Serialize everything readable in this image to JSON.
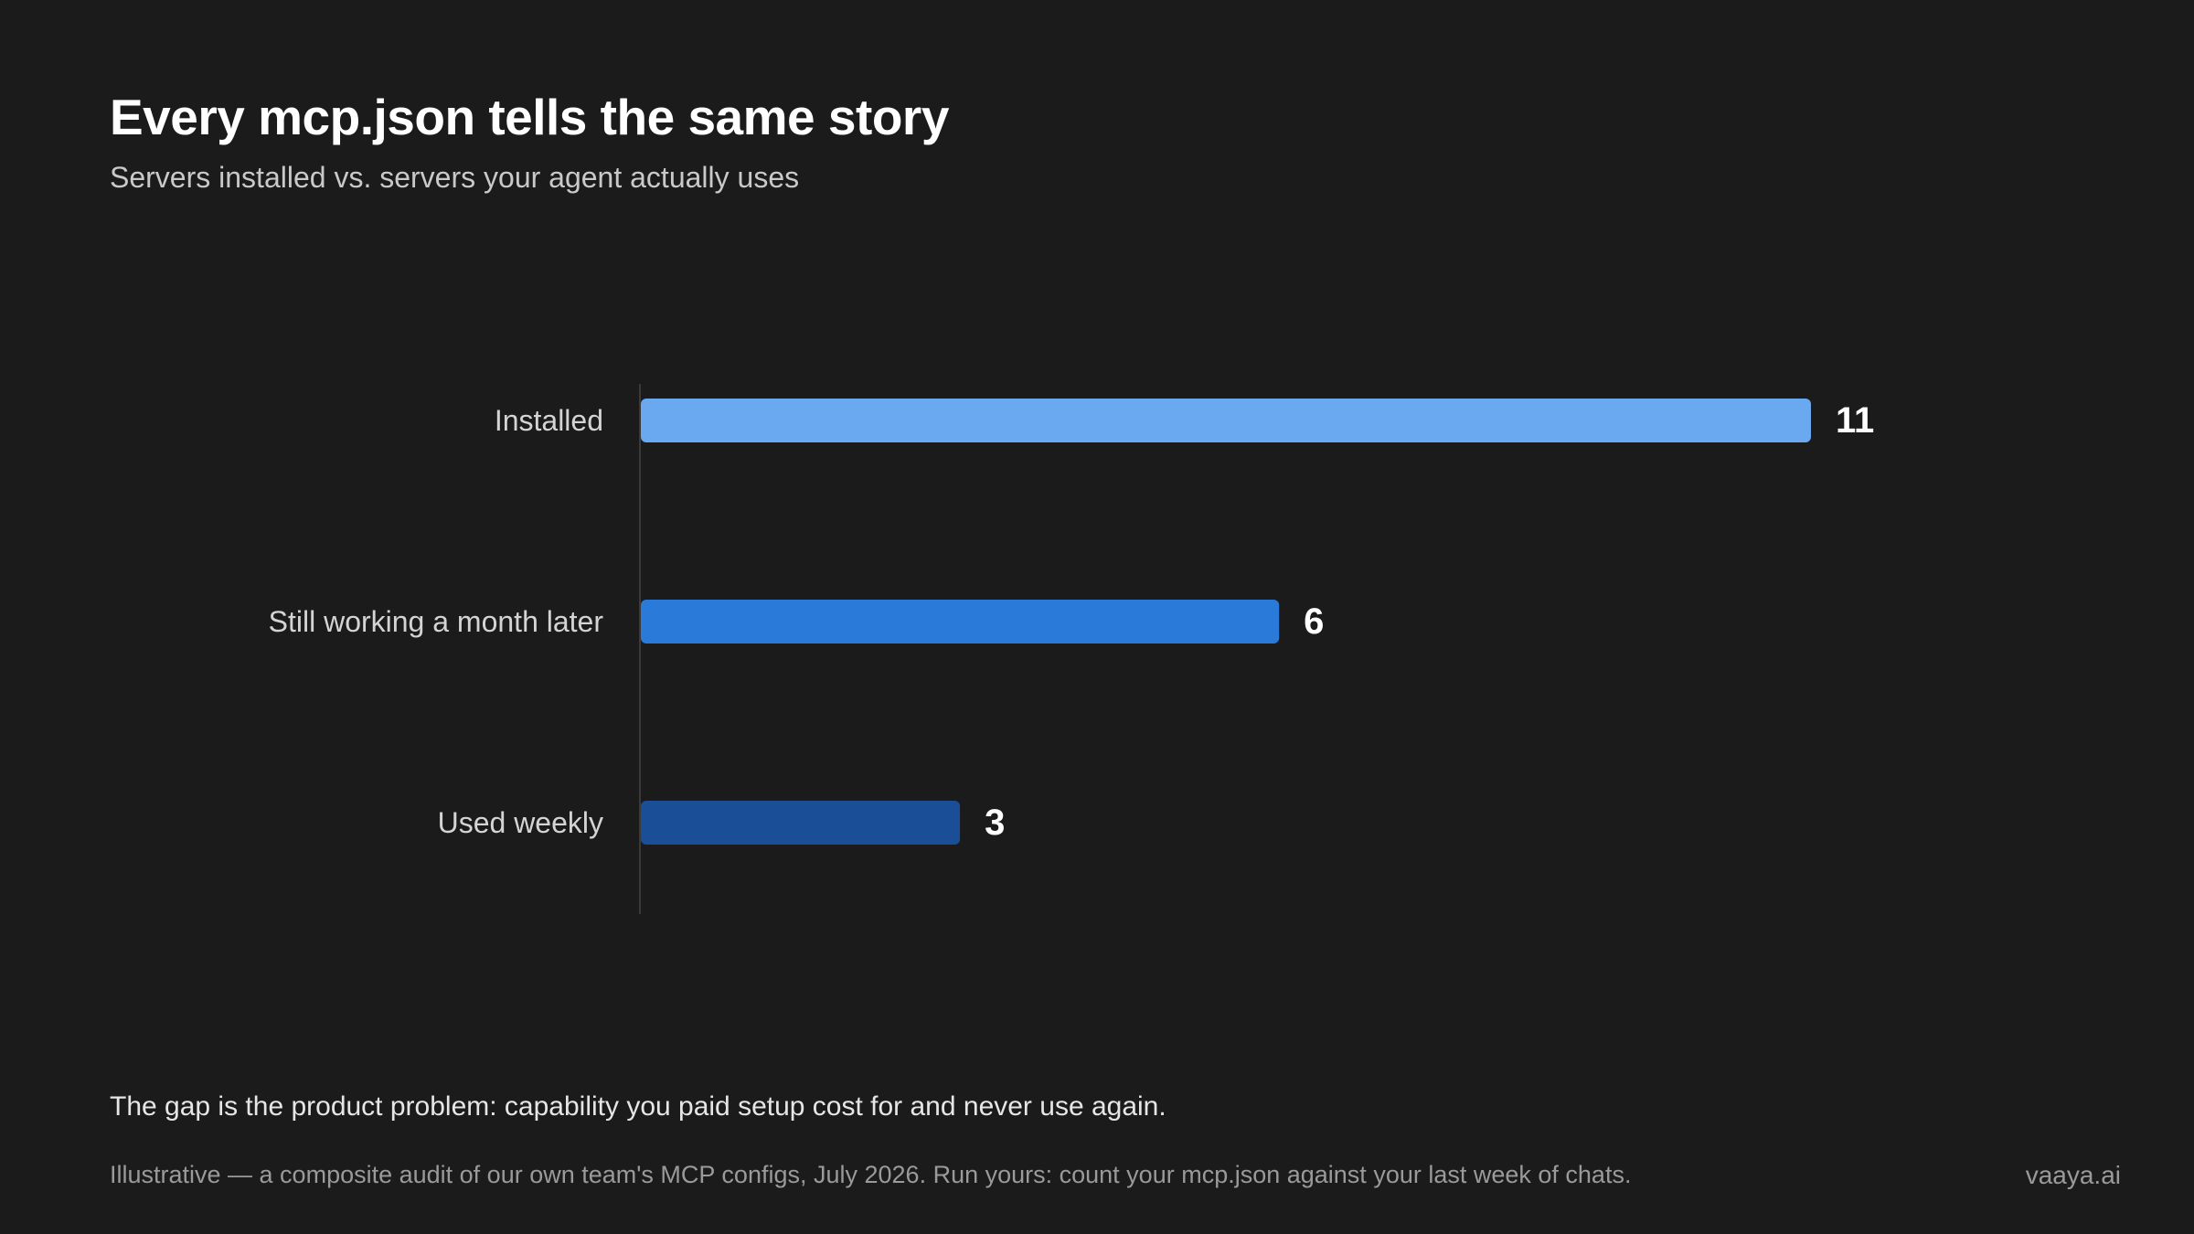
{
  "header": {
    "title": "Every mcp.json tells the same story",
    "subtitle": "Servers installed vs. servers your agent actually uses"
  },
  "chart_data": {
    "type": "bar",
    "orientation": "horizontal",
    "categories": [
      "Installed",
      "Still working a month later",
      "Used weekly"
    ],
    "values": [
      11,
      6,
      3
    ],
    "colors": [
      "#6aa8ef",
      "#2a7ad9",
      "#1a4f98"
    ],
    "title": "Every mcp.json tells the same story",
    "subtitle": "Servers installed vs. servers your agent actually uses",
    "xlim": [
      0,
      11
    ],
    "grid": false,
    "legend": "none"
  },
  "footer": {
    "note": "The gap is the product problem: capability you paid setup cost for and never use again.",
    "source": "Illustrative — a composite audit of our own team's MCP configs, July 2026. Run yours: count your mcp.json against your last week of chats.",
    "brand": "vaaya.ai"
  }
}
